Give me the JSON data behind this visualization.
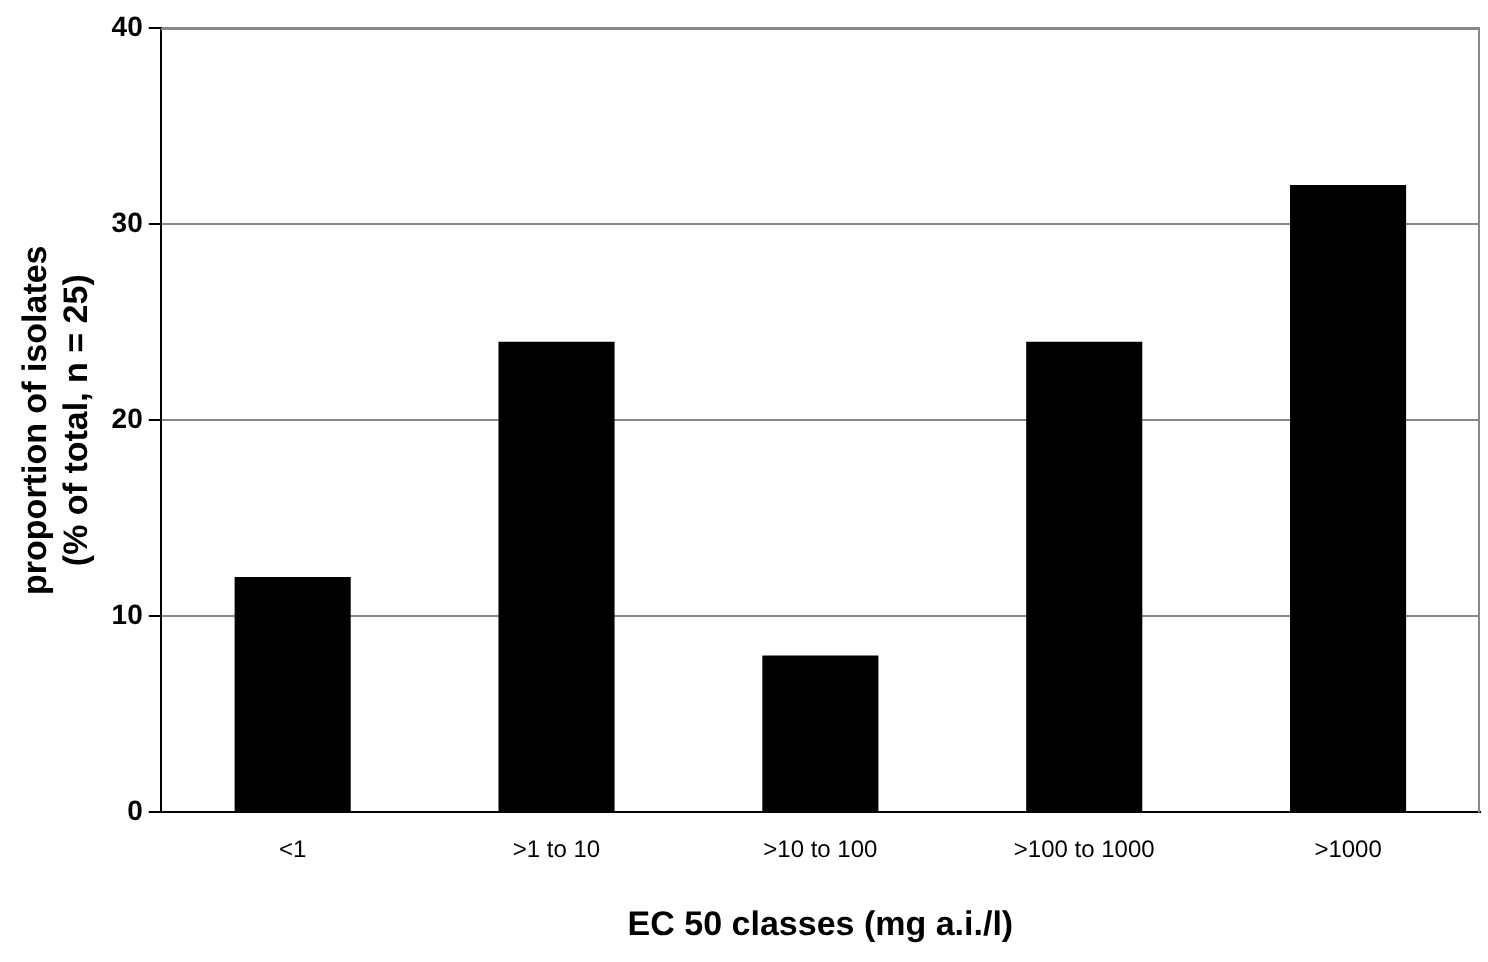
{
  "chart_data": {
    "type": "bar",
    "xlabel": "EC 50 classes (mg a.i./l)",
    "ylabel": "proportion of isolates\n(% of total, n = 25)",
    "categories": [
      "<1",
      ">1 to 10",
      ">10 to 100",
      ">100 to 1000",
      ">1000"
    ],
    "values": [
      12,
      24,
      8,
      24,
      32
    ],
    "color": "#000000",
    "ylim": [
      0,
      40
    ],
    "yticks": [
      0,
      10,
      20,
      30,
      40
    ],
    "grid": "y",
    "legend": false
  }
}
